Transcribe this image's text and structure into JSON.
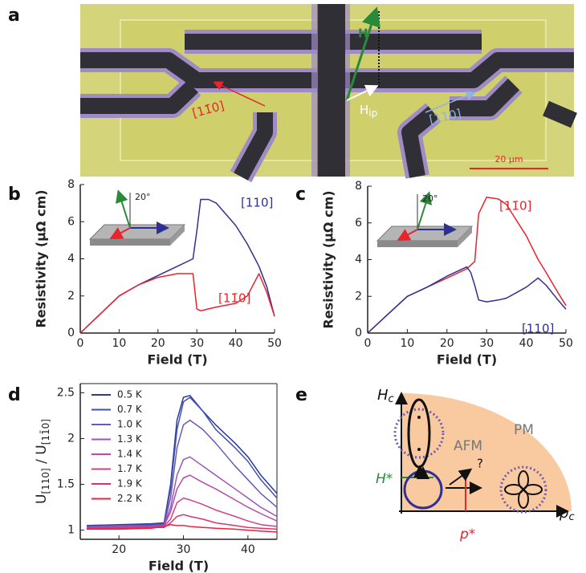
{
  "panel_labels": [
    "a",
    "b",
    "c",
    "d",
    "e"
  ],
  "sem": {
    "h": "H",
    "hip_main": "H",
    "hip_sub": "ip",
    "dir_red": "[11̄0]",
    "dir_blue": "[110]",
    "scale": "20 μm"
  },
  "chart_data": [
    {
      "type": "line",
      "xlabel": "Field (T)",
      "ylabel": "Resistivity (μΩ cm)",
      "inset_angle": "20°",
      "xlim": [
        0,
        50
      ],
      "ylim": [
        0,
        8
      ],
      "xticks": [
        0,
        10,
        20,
        30,
        40,
        50
      ],
      "yticks": [
        0,
        2,
        4,
        6,
        8
      ],
      "x": [
        0,
        5,
        10,
        15,
        20,
        25,
        29,
        30,
        31,
        33,
        35,
        40,
        43,
        45,
        46,
        48,
        50
      ],
      "series": [
        {
          "name": "[110]",
          "color": "#2e3192",
          "values": [
            0,
            1,
            2,
            2.6,
            3.1,
            3.6,
            4.0,
            5.5,
            7.2,
            7.2,
            7.0,
            5.8,
            4.8,
            4.0,
            3.6,
            2.5,
            0.9
          ]
        },
        {
          "name": "[11̄0]",
          "color": "#e8242e",
          "values": [
            0,
            1,
            2,
            2.6,
            3.0,
            3.2,
            3.2,
            1.3,
            1.2,
            1.3,
            1.4,
            1.6,
            2.0,
            2.8,
            3.2,
            2.2,
            0.9
          ]
        }
      ]
    },
    {
      "type": "line",
      "xlabel": "Field (T)",
      "ylabel": "Resistivity (μΩ cm)",
      "inset_angle": "20°",
      "xlim": [
        0,
        50
      ],
      "ylim": [
        0,
        8
      ],
      "xticks": [
        0,
        10,
        20,
        30,
        40,
        50
      ],
      "yticks": [
        0,
        2,
        4,
        6,
        8
      ],
      "x": [
        0,
        5,
        10,
        15,
        20,
        25,
        26,
        27,
        28,
        30,
        33,
        35,
        40,
        43,
        45,
        48,
        50
      ],
      "series": [
        {
          "name": "[11̄0]",
          "color": "#e8242e",
          "values": [
            0,
            1,
            2,
            2.5,
            3.0,
            3.5,
            3.7,
            3.9,
            6.5,
            7.4,
            7.3,
            7.0,
            5.3,
            4.0,
            3.3,
            2.2,
            1.5
          ]
        },
        {
          "name": "[110]",
          "color": "#2e3192",
          "values": [
            0,
            1,
            2,
            2.5,
            3.1,
            3.6,
            3.3,
            2.6,
            1.8,
            1.7,
            1.8,
            1.9,
            2.5,
            3.0,
            2.6,
            1.8,
            1.3
          ]
        }
      ]
    },
    {
      "type": "line",
      "xlabel": "Field (T)",
      "ylabel_parts": [
        "U",
        "[110]",
        " / U",
        "[11̄0]"
      ],
      "legend": "top-left",
      "xlim": [
        14,
        44.5
      ],
      "ylim": [
        0.9,
        2.6
      ],
      "xticks": [
        20,
        30,
        40
      ],
      "yticks": [
        1,
        1.5,
        2,
        2.5
      ],
      "x": [
        15,
        20,
        25,
        27,
        28,
        29,
        30,
        31,
        33,
        35,
        38,
        40,
        42,
        44.5
      ],
      "series": [
        {
          "name": "0.5 K",
          "color": "#2b3a9a",
          "values": [
            1.05,
            1.06,
            1.07,
            1.08,
            1.5,
            2.2,
            2.45,
            2.47,
            2.3,
            2.15,
            1.95,
            1.8,
            1.6,
            1.4
          ]
        },
        {
          "name": "0.7 K",
          "color": "#4252b0",
          "values": [
            1.04,
            1.05,
            1.06,
            1.07,
            1.45,
            2.1,
            2.4,
            2.45,
            2.3,
            2.1,
            1.9,
            1.75,
            1.55,
            1.35
          ]
        },
        {
          "name": "1.0 K",
          "color": "#6a5ab5",
          "values": [
            1.04,
            1.05,
            1.05,
            1.06,
            1.35,
            1.9,
            2.15,
            2.2,
            2.1,
            1.95,
            1.7,
            1.55,
            1.4,
            1.25
          ]
        },
        {
          "name": "1.3 K",
          "color": "#9a55b8",
          "values": [
            1.03,
            1.04,
            1.04,
            1.05,
            1.25,
            1.6,
            1.77,
            1.8,
            1.7,
            1.6,
            1.45,
            1.35,
            1.25,
            1.15
          ]
        },
        {
          "name": "1.4 K",
          "color": "#b84aaa",
          "values": [
            1.03,
            1.03,
            1.04,
            1.05,
            1.2,
            1.45,
            1.57,
            1.6,
            1.52,
            1.45,
            1.33,
            1.25,
            1.18,
            1.1
          ]
        },
        {
          "name": "1.7 K",
          "color": "#d04090",
          "values": [
            1.02,
            1.03,
            1.03,
            1.04,
            1.12,
            1.3,
            1.35,
            1.33,
            1.28,
            1.22,
            1.15,
            1.1,
            1.06,
            1.04
          ]
        },
        {
          "name": "1.9 K",
          "color": "#e03070",
          "values": [
            1.02,
            1.02,
            1.03,
            1.03,
            1.08,
            1.15,
            1.17,
            1.15,
            1.12,
            1.08,
            1.05,
            1.03,
            1.02,
            1.01
          ]
        },
        {
          "name": "2.2 K",
          "color": "#e8243d",
          "values": [
            1.01,
            1.01,
            1.02,
            1.04,
            1.06,
            1.05,
            1.05,
            1.04,
            1.03,
            1.02,
            1.01,
            1.0,
            0.99,
            0.98
          ]
        }
      ]
    }
  ],
  "diagram": {
    "y_axis": "H",
    "y_axis_sub": "c",
    "x_axis": "p",
    "x_axis_sub": "c",
    "pm": "PM",
    "afm": "AFM",
    "h_star": "H*",
    "p_star": "p*",
    "question": "?"
  }
}
